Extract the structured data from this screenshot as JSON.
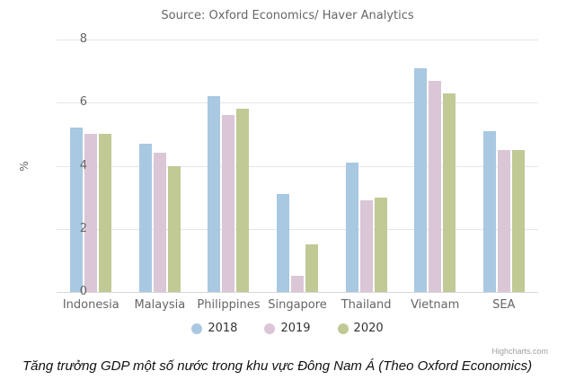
{
  "chart": {
    "title": "Source: Oxford Economics/ Haver Analytics",
    "y_axis_title": "%",
    "credit": "Highcharts.com",
    "caption": "Tăng trưởng GDP một số nước trong khu vực Đông Nam Á (Theo Oxford Economics)"
  },
  "chart_data": {
    "type": "bar",
    "title": "Source: Oxford Economics/ Haver Analytics",
    "categories": [
      "Indonesia",
      "Malaysia",
      "Philippines",
      "Singapore",
      "Thailand",
      "Vietnam",
      "SEA"
    ],
    "series": [
      {
        "name": "2018",
        "color": "#a9c8e2",
        "values": [
          5.2,
          4.7,
          6.2,
          3.1,
          4.1,
          7.1,
          5.1
        ]
      },
      {
        "name": "2019",
        "color": "#dac6d7",
        "values": [
          5.0,
          4.4,
          5.6,
          0.5,
          2.9,
          6.7,
          4.5
        ]
      },
      {
        "name": "2020",
        "color": "#c1c995",
        "values": [
          5.0,
          4.0,
          5.8,
          1.5,
          3.0,
          6.3,
          4.5
        ]
      }
    ],
    "xlabel": "",
    "ylabel": "%",
    "ylim": [
      0,
      8
    ],
    "yticks": [
      0,
      2,
      4,
      6,
      8
    ],
    "grid": true,
    "legend_position": "bottom"
  }
}
